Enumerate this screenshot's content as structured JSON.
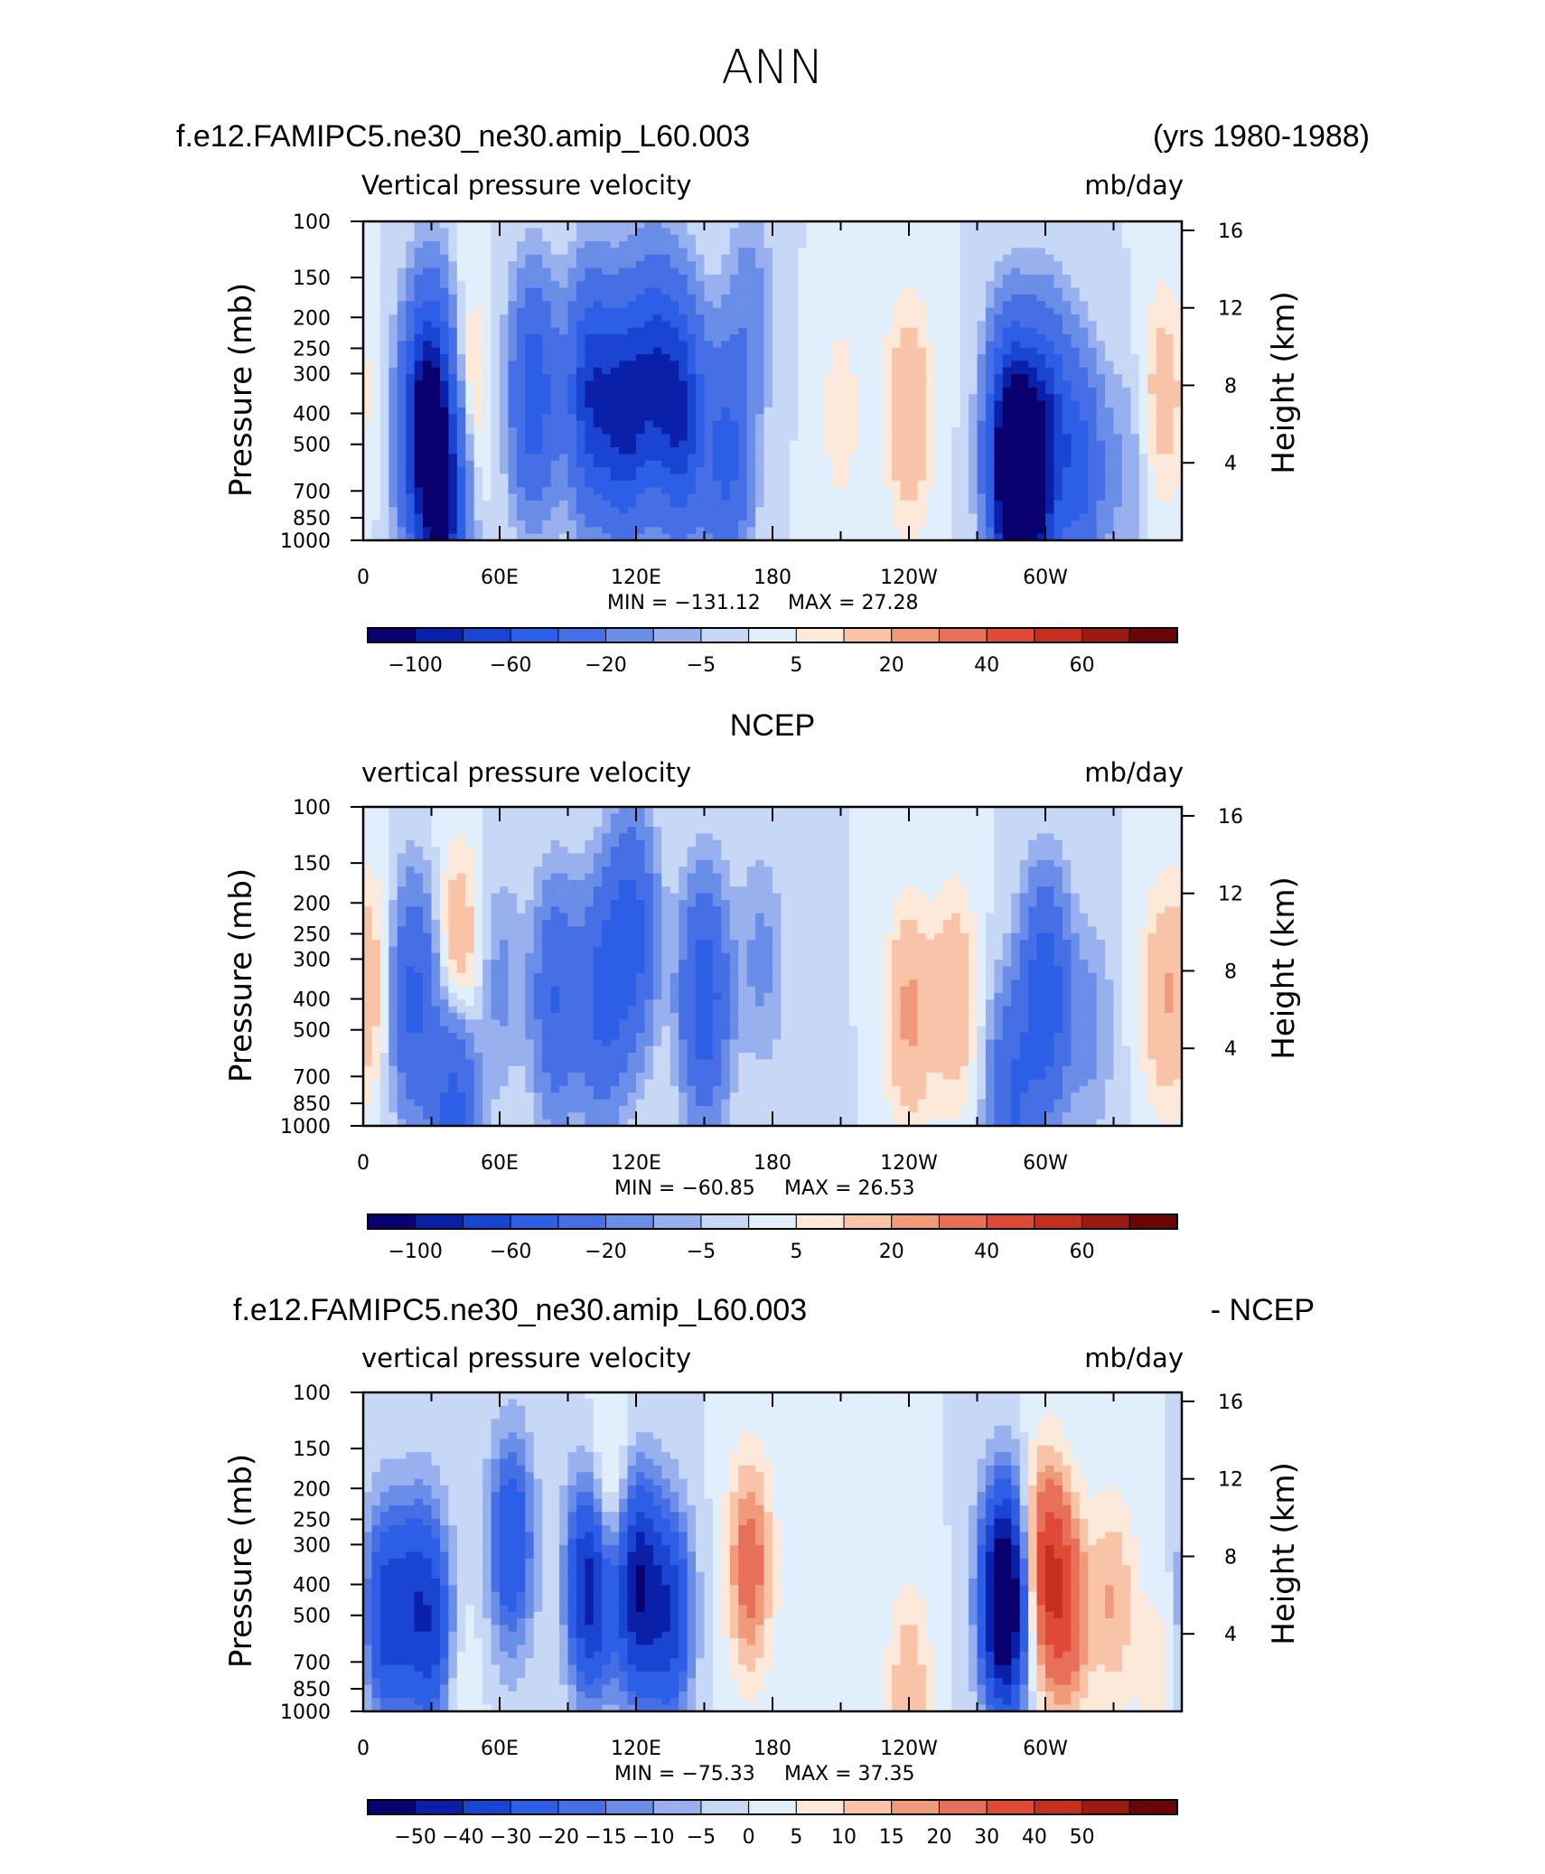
{
  "page_title": "ANN",
  "panels": [
    {
      "left_title": "f.e12.FAMIPC5.ne30_ne30.amip_L60.003",
      "right_title": "(yrs 1980-1988)",
      "variable": "Vertical pressure velocity",
      "units": "mb/day",
      "min_label": "MIN = −131.12",
      "max_label": "MAX =   27.28",
      "colorbar_labels": [
        "−100",
        "−60",
        "−20",
        "−5",
        "5",
        "20",
        "40",
        "60"
      ]
    },
    {
      "left_title": "",
      "center_title": "NCEP",
      "variable": "vertical pressure velocity",
      "units": "mb/day",
      "min_label": "MIN = −60.85",
      "max_label": "MAX =   26.53",
      "colorbar_labels": [
        "−100",
        "−60",
        "−20",
        "−5",
        "5",
        "20",
        "40",
        "60"
      ]
    },
    {
      "left_title": "f.e12.FAMIPC5.ne30_ne30.amip_L60.003",
      "right_title": "- NCEP",
      "variable": "vertical pressure velocity",
      "units": "mb/day",
      "min_label": "MIN = −75.33",
      "max_label": "MAX =   37.35",
      "colorbar_labels": [
        "−50",
        "−40",
        "−30",
        "−20",
        "−15",
        "−10",
        "−5",
        "0",
        "5",
        "10",
        "15",
        "20",
        "30",
        "40",
        "50"
      ]
    }
  ],
  "chart_data": [
    {
      "type": "heatmap",
      "title": "f.e12.FAMIPC5.ne30_ne30.amip_L60.003 (yrs 1980-1988)",
      "variable": "Vertical pressure velocity",
      "units": "mb/day",
      "x_tick_labels": [
        "0",
        "60E",
        "120E",
        "180",
        "120W",
        "60W"
      ],
      "x_ticks_deg": [
        0,
        60,
        120,
        180,
        240,
        300
      ],
      "xlim_deg": [
        0,
        360
      ],
      "ylabel_left": "Pressure (mb)",
      "y_ticks_left": [
        100,
        150,
        200,
        250,
        300,
        400,
        500,
        700,
        850,
        1000
      ],
      "ylabel_right": "Height (km)",
      "y_ticks_right": [
        4,
        8,
        12,
        16
      ],
      "ylim_pressure": [
        1000,
        100
      ],
      "min": -131.12,
      "max": 27.28,
      "levels": [
        -120,
        -100,
        -80,
        -60,
        -40,
        -20,
        -10,
        -5,
        0,
        5,
        10,
        20,
        30,
        40,
        50,
        60,
        70
      ],
      "colors": [
        "#08006e",
        "#0a20a8",
        "#1a45d2",
        "#2d5ee6",
        "#466fe5",
        "#6a8de8",
        "#98b0ee",
        "#c6d8f5",
        "#e1eefb",
        "#fde9d9",
        "#f8c3a7",
        "#f19a7a",
        "#e8705b",
        "#df4a36",
        "#c42f20",
        "#9b1a12",
        "#6a0606"
      ],
      "blobs": [
        {
          "lon": 30,
          "p": 350,
          "v": -70
        },
        {
          "lon": 26,
          "p": 500,
          "v": -60
        },
        {
          "lon": 35,
          "p": 800,
          "v": -90
        },
        {
          "lon": 45,
          "p": 350,
          "v": 15
        },
        {
          "lon": 75,
          "p": 350,
          "v": -55
        },
        {
          "lon": 100,
          "p": 350,
          "v": -75
        },
        {
          "lon": 115,
          "p": 400,
          "v": -80
        },
        {
          "lon": 128,
          "p": 300,
          "v": -60
        },
        {
          "lon": 140,
          "p": 400,
          "v": -75
        },
        {
          "lon": 160,
          "p": 550,
          "v": -45
        },
        {
          "lon": 170,
          "p": 200,
          "v": -15
        },
        {
          "lon": 210,
          "p": 400,
          "v": 8
        },
        {
          "lon": 240,
          "p": 400,
          "v": 20
        },
        {
          "lon": 285,
          "p": 500,
          "v": -110
        },
        {
          "lon": 290,
          "p": 850,
          "v": -130
        },
        {
          "lon": 300,
          "p": 450,
          "v": -70
        },
        {
          "lon": 315,
          "p": 600,
          "v": -45
        },
        {
          "lon": 335,
          "p": 600,
          "v": -10
        },
        {
          "lon": 352,
          "p": 350,
          "v": 15
        }
      ]
    },
    {
      "type": "heatmap",
      "title": "NCEP",
      "variable": "vertical pressure velocity",
      "units": "mb/day",
      "x_tick_labels": [
        "0",
        "60E",
        "120E",
        "180",
        "120W",
        "60W"
      ],
      "x_ticks_deg": [
        0,
        60,
        120,
        180,
        240,
        300
      ],
      "xlim_deg": [
        0,
        360
      ],
      "ylabel_left": "Pressure (mb)",
      "y_ticks_left": [
        100,
        150,
        200,
        250,
        300,
        400,
        500,
        700,
        850,
        1000
      ],
      "ylabel_right": "Height (km)",
      "y_ticks_right": [
        4,
        8,
        12,
        16
      ],
      "ylim_pressure": [
        1000,
        100
      ],
      "min": -60.85,
      "max": 26.53,
      "levels": [
        -120,
        -100,
        -80,
        -60,
        -40,
        -20,
        -10,
        -5,
        0,
        5,
        10,
        20,
        30,
        40,
        50,
        60,
        70
      ],
      "colors": [
        "#08006e",
        "#0a20a8",
        "#1a45d2",
        "#2d5ee6",
        "#466fe5",
        "#6a8de8",
        "#98b0ee",
        "#c6d8f5",
        "#e1eefb",
        "#fde9d9",
        "#f8c3a7",
        "#f19a7a",
        "#e8705b",
        "#df4a36",
        "#c42f20",
        "#9b1a12",
        "#6a0606"
      ],
      "blobs": [
        {
          "lon": 5,
          "p": 350,
          "v": 12
        },
        {
          "lon": 22,
          "p": 400,
          "v": -45
        },
        {
          "lon": 42,
          "p": 300,
          "v": 20
        },
        {
          "lon": 40,
          "p": 900,
          "v": -50
        },
        {
          "lon": 60,
          "p": 350,
          "v": -12
        },
        {
          "lon": 85,
          "p": 400,
          "v": -40
        },
        {
          "lon": 105,
          "p": 400,
          "v": -45
        },
        {
          "lon": 118,
          "p": 250,
          "v": -50
        },
        {
          "lon": 150,
          "p": 400,
          "v": -55
        },
        {
          "lon": 175,
          "p": 300,
          "v": -12
        },
        {
          "lon": 195,
          "p": 700,
          "v": -5
        },
        {
          "lon": 240,
          "p": 450,
          "v": 22
        },
        {
          "lon": 260,
          "p": 400,
          "v": 18
        },
        {
          "lon": 300,
          "p": 400,
          "v": -58
        },
        {
          "lon": 285,
          "p": 850,
          "v": -40
        },
        {
          "lon": 320,
          "p": 500,
          "v": -12
        },
        {
          "lon": 352,
          "p": 400,
          "v": 18
        }
      ]
    },
    {
      "type": "heatmap",
      "title": "f.e12.FAMIPC5.ne30_ne30.amip_L60.003 - NCEP",
      "variable": "vertical pressure velocity",
      "units": "mb/day",
      "x_tick_labels": [
        "0",
        "60E",
        "120E",
        "180",
        "120W",
        "60W"
      ],
      "x_ticks_deg": [
        0,
        60,
        120,
        180,
        240,
        300
      ],
      "xlim_deg": [
        0,
        360
      ],
      "ylabel_left": "Pressure (mb)",
      "y_ticks_left": [
        100,
        150,
        200,
        250,
        300,
        400,
        500,
        700,
        850,
        1000
      ],
      "ylabel_right": "Height (km)",
      "y_ticks_right": [
        4,
        8,
        12,
        16
      ],
      "ylim_pressure": [
        1000,
        100
      ],
      "min": -75.33,
      "max": 37.35,
      "levels": [
        -60,
        -50,
        -40,
        -30,
        -20,
        -15,
        -10,
        -5,
        0,
        5,
        10,
        15,
        20,
        30,
        40,
        50,
        60
      ],
      "colors": [
        "#08006e",
        "#0a20a8",
        "#1a45d2",
        "#2d5ee6",
        "#466fe5",
        "#6a8de8",
        "#98b0ee",
        "#c6d8f5",
        "#e1eefb",
        "#fde9d9",
        "#f8c3a7",
        "#f19a7a",
        "#e8705b",
        "#df4a36",
        "#c42f20",
        "#9b1a12",
        "#6a0606"
      ],
      "blobs": [
        {
          "lon": 10,
          "p": 500,
          "v": -35
        },
        {
          "lon": 25,
          "p": 450,
          "v": -30
        },
        {
          "lon": 35,
          "p": 700,
          "v": -40
        },
        {
          "lon": 38,
          "p": 800,
          "v": 30
        },
        {
          "lon": 65,
          "p": 300,
          "v": -30
        },
        {
          "lon": 100,
          "p": 400,
          "v": -50
        },
        {
          "lon": 108,
          "p": 250,
          "v": 20
        },
        {
          "lon": 120,
          "p": 400,
          "v": -50
        },
        {
          "lon": 135,
          "p": 500,
          "v": -35
        },
        {
          "lon": 170,
          "p": 350,
          "v": 25
        },
        {
          "lon": 240,
          "p": 880,
          "v": 15
        },
        {
          "lon": 282,
          "p": 450,
          "v": -75
        },
        {
          "lon": 300,
          "p": 350,
          "v": 35
        },
        {
          "lon": 310,
          "p": 500,
          "v": 25
        },
        {
          "lon": 330,
          "p": 450,
          "v": 15
        },
        {
          "lon": 350,
          "p": 800,
          "v": 8
        }
      ]
    }
  ]
}
